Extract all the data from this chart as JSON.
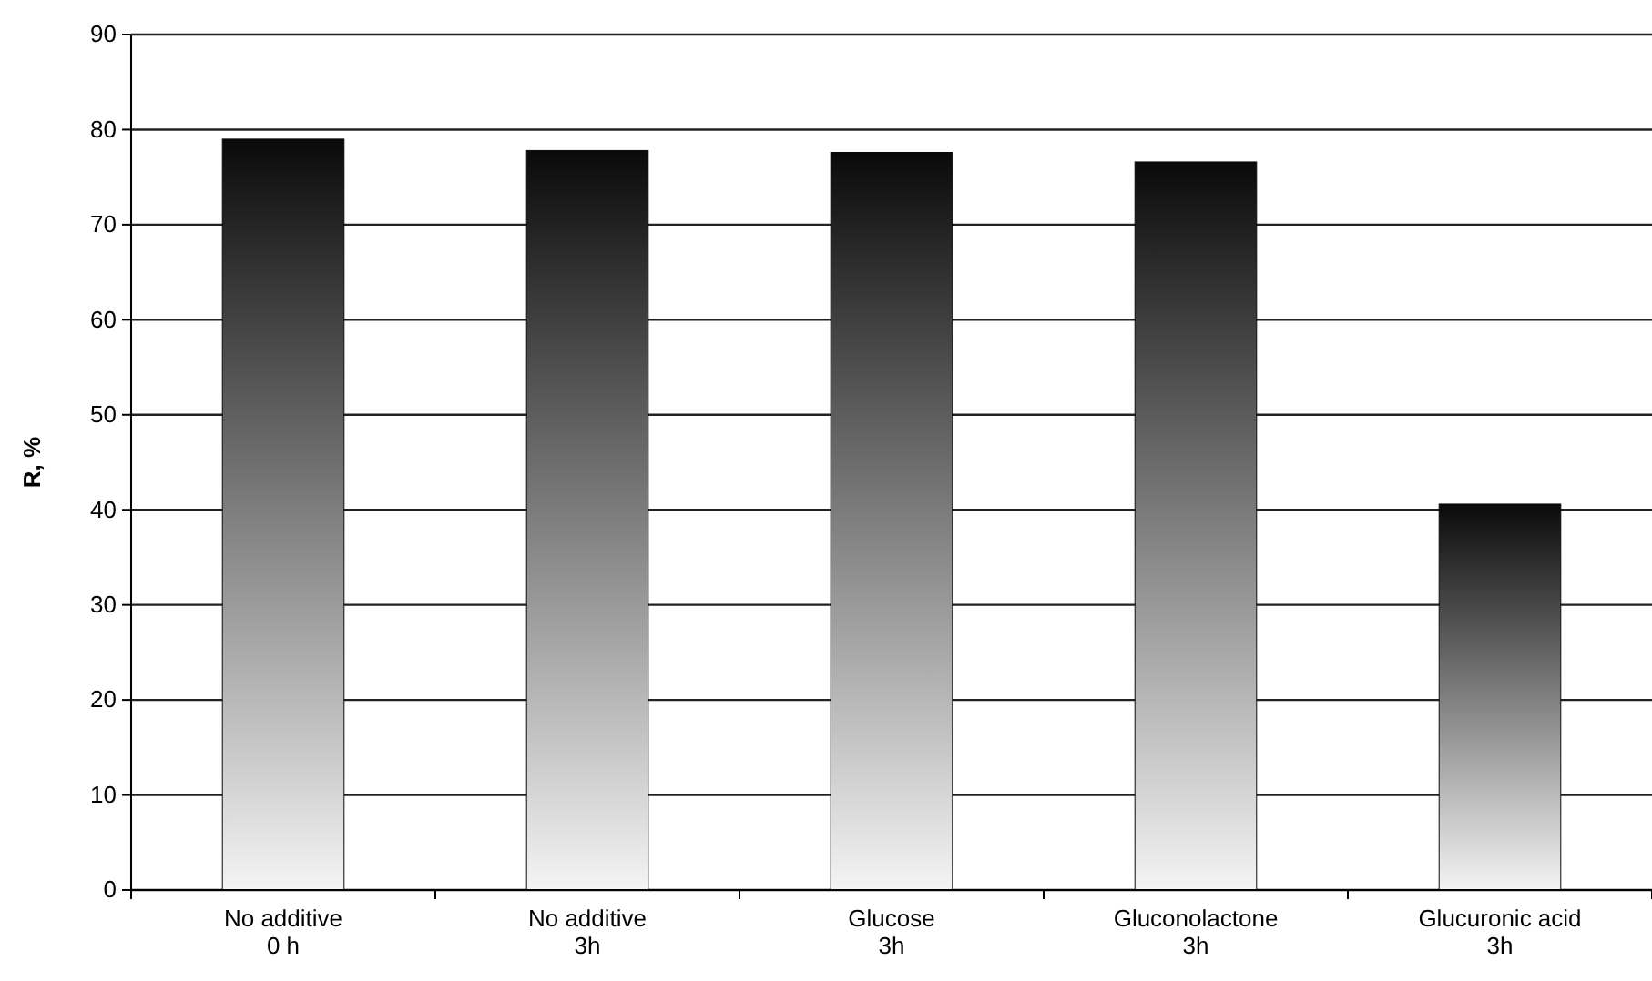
{
  "chart_data": {
    "type": "bar",
    "ylabel": "R, %",
    "categories": [
      "No additive\n0 h",
      "No additive\n3h",
      "Glucose\n3h",
      "Gluconolactone\n3h",
      "Glucuronic acid\n3h"
    ],
    "values": [
      79.0,
      77.8,
      77.6,
      76.6,
      40.6
    ],
    "color": "#0a0a0a",
    "ylim": [
      0,
      90
    ],
    "yticks": [
      0,
      10,
      20,
      30,
      40,
      50,
      60,
      70,
      80,
      90
    ],
    "grid": "y"
  }
}
